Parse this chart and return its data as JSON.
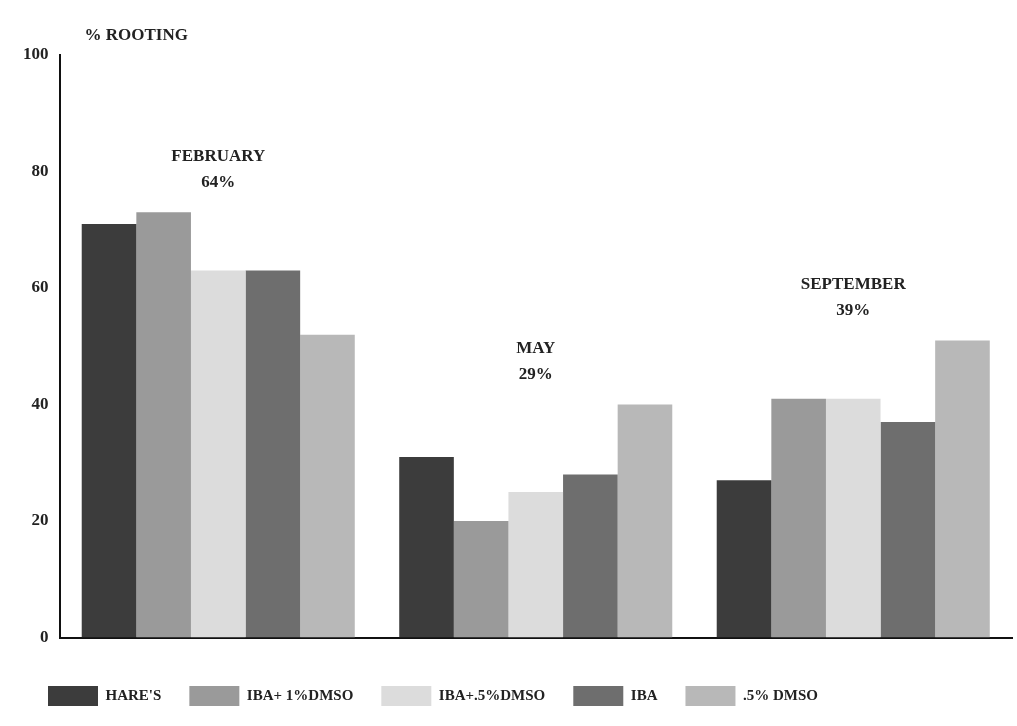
{
  "chart_data": {
    "type": "bar",
    "ylabel": "% ROOTING",
    "categories": [
      null,
      null,
      null
    ],
    "series": [
      {
        "name": "HARE'S",
        "color": "#3c3c3c",
        "values": [
          71,
          31,
          27
        ]
      },
      {
        "name": "IBA+ 1%DMSO",
        "color": "#9a9a9a",
        "values": [
          73,
          20,
          41
        ]
      },
      {
        "name": "IBA+.5%DMSO",
        "color": "#dcdcdc",
        "values": [
          63,
          25,
          41
        ]
      },
      {
        "name": "IBA",
        "color": "#6e6e6e",
        "values": [
          63,
          28,
          37
        ]
      },
      {
        "name": ".5% DMSO",
        "color": "#b8b8b8",
        "values": [
          52,
          40,
          51
        ]
      }
    ],
    "ylim": [
      0,
      100
    ],
    "yticks": [
      0,
      20,
      40,
      60,
      80,
      100
    ],
    "grid": false,
    "legend": "bottom",
    "annotations": [
      "FEBRUARY\n64%",
      "MAY\n29%",
      "SEPTEMBER\n39%"
    ]
  }
}
